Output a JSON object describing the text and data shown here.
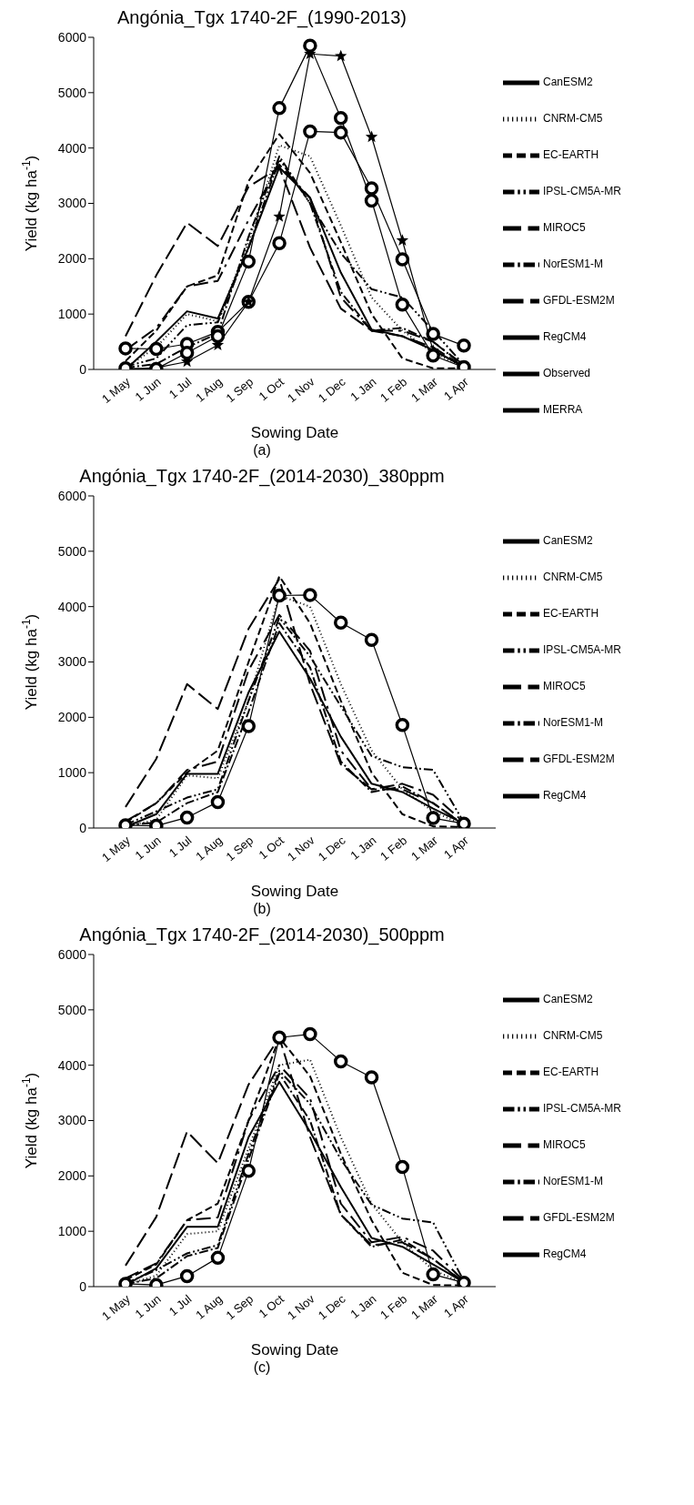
{
  "chart_data": [
    {
      "type": "line",
      "title": "Angónia_Tgx 1740-2F_(1990-2013)",
      "xlabel": "Sowing Date",
      "ylabel": "Yield (kg ha$^{-1}$)",
      "categories": [
        "1 May",
        "1 Jun",
        "1 Jul",
        "1 Aug",
        "1 Sep",
        "1 Oct",
        "1 Nov",
        "1 Dec",
        "1 Jan",
        "1 Feb",
        "1 Mar",
        "1 Apr"
      ],
      "ylim": [
        0,
        6000
      ],
      "yticks": [
        0,
        1000,
        2000,
        3000,
        4000,
        5000,
        6000
      ],
      "legend": "right",
      "annotations": [
        "(a)"
      ],
      "series": [
        {
          "name": "CanESM2",
          "color": "#000000",
          "line_style": "solid",
          "marker": "none",
          "values": [
            0,
            500,
            1050,
            920,
            2200,
            3650,
            3100,
            1750,
            720,
            600,
            350,
            50
          ]
        },
        {
          "name": "CNRM-CM5",
          "color": "#000000",
          "line_style": "dotted",
          "marker": "none",
          "values": [
            30,
            400,
            1000,
            870,
            2300,
            4050,
            3850,
            2600,
            1300,
            700,
            300,
            50
          ]
        },
        {
          "name": "EC-EARTH",
          "color": "#000000",
          "line_style": "dashed",
          "marker": "none",
          "values": [
            150,
            700,
            1500,
            1700,
            3400,
            4250,
            3550,
            2300,
            1000,
            200,
            20,
            20
          ]
        },
        {
          "name": "IPSL-CM5A-MR",
          "color": "#000000",
          "line_style": "dashed",
          "marker": "none",
          "values": [
            50,
            200,
            800,
            850,
            2200,
            3800,
            3000,
            2100,
            1450,
            1300,
            700,
            80
          ]
        },
        {
          "name": "MIROC5",
          "color": "#000000",
          "line_style": "dashed",
          "marker": "none",
          "values": [
            350,
            750,
            1500,
            1600,
            2700,
            3700,
            3100,
            1300,
            700,
            700,
            500,
            80
          ]
        },
        {
          "name": "NorESM1-M",
          "color": "#000000",
          "line_style": "dashed",
          "marker": "none",
          "values": [
            30,
            100,
            400,
            650,
            2400,
            3850,
            3000,
            1400,
            700,
            750,
            500,
            60
          ]
        },
        {
          "name": "GFDL-ESM2M",
          "color": "#000000",
          "line_style": "dashed",
          "marker": "none",
          "values": [
            600,
            1700,
            2650,
            2230,
            3300,
            3650,
            2200,
            1100,
            700,
            600,
            400,
            50
          ]
        },
        {
          "name": "RegCM4",
          "color": "#000000",
          "line_style": "solid",
          "marker": "circle",
          "values": [
            380,
            370,
            460,
            680,
            1220,
            2280,
            4300,
            4280,
            3270,
            1990,
            640,
            430
          ]
        },
        {
          "name": "Observed",
          "color": "#000000",
          "line_style": "solid",
          "marker": "star",
          "values": [
            0,
            30,
            140,
            440,
            1220,
            2760,
            5700,
            5660,
            4200,
            2330,
            340,
            40
          ]
        },
        {
          "name": "MERRA",
          "color": "#000000",
          "line_style": "solid",
          "marker": "circle",
          "values": [
            20,
            10,
            300,
            600,
            1950,
            4720,
            5850,
            4540,
            3050,
            1170,
            250,
            40
          ]
        }
      ]
    },
    {
      "type": "line",
      "title": "Angónia_Tgx 1740-2F_(2014-2030)_380ppm",
      "xlabel": "Sowing Date",
      "ylabel": "Yield (kg ha$^{-1}$)",
      "categories": [
        "1 May",
        "1 Jun",
        "1 Jul",
        "1 Aug",
        "1 Sep",
        "1 Oct",
        "1 Nov",
        "1 Dec",
        "1 Jan",
        "1 Feb",
        "1 Mar",
        "1 Apr"
      ],
      "ylim": [
        0,
        6000
      ],
      "yticks": [
        0,
        1000,
        2000,
        3000,
        4000,
        5000,
        6000
      ],
      "legend": "right",
      "annotations": [
        "(b)"
      ],
      "series": [
        {
          "name": "CanESM2",
          "color": "#000000",
          "line_style": "solid",
          "marker": "none",
          "values": [
            20,
            250,
            980,
            980,
            2450,
            3550,
            2700,
            1650,
            800,
            650,
            350,
            80
          ]
        },
        {
          "name": "CNRM-CM5",
          "color": "#000000",
          "line_style": "dotted",
          "marker": "none",
          "values": [
            30,
            150,
            950,
            900,
            2300,
            4200,
            4000,
            2600,
            1400,
            700,
            300,
            50
          ]
        },
        {
          "name": "EC-EARTH",
          "color": "#000000",
          "line_style": "dashed",
          "marker": "none",
          "values": [
            100,
            450,
            1000,
            1400,
            3000,
            4550,
            3700,
            2300,
            1000,
            250,
            30,
            20
          ]
        },
        {
          "name": "IPSL-CM5A-MR",
          "color": "#000000",
          "line_style": "dashed",
          "marker": "none",
          "values": [
            60,
            300,
            550,
            700,
            2300,
            3800,
            3100,
            2200,
            1300,
            1100,
            1050,
            100
          ]
        },
        {
          "name": "MIROC5",
          "color": "#000000",
          "line_style": "dashed",
          "marker": "none",
          "values": [
            120,
            450,
            1050,
            1200,
            2850,
            3850,
            3200,
            1400,
            700,
            800,
            600,
            100
          ]
        },
        {
          "name": "NorESM1-M",
          "color": "#000000",
          "line_style": "dashed",
          "marker": "none",
          "values": [
            50,
            100,
            450,
            650,
            2100,
            3700,
            2900,
            1200,
            650,
            750,
            450,
            60
          ]
        },
        {
          "name": "GFDL-ESM2M",
          "color": "#000000",
          "line_style": "dashed",
          "marker": "none",
          "values": [
            380,
            1250,
            2600,
            2150,
            3600,
            4500,
            2600,
            1150,
            700,
            700,
            450,
            60
          ]
        },
        {
          "name": "RegCM4",
          "color": "#000000",
          "line_style": "solid",
          "marker": "circle",
          "values": [
            50,
            40,
            190,
            470,
            1840,
            4200,
            4210,
            3710,
            3400,
            1860,
            180,
            80
          ]
        }
      ]
    },
    {
      "type": "line",
      "title": "Angónia_Tgx 1740-2F_(2014-2030)_500ppm",
      "xlabel": "Sowing Date",
      "ylabel": "Yield (kg ha$^{-1}$)",
      "categories": [
        "1 May",
        "1 Jun",
        "1 Jul",
        "1 Aug",
        "1 Sep",
        "1 Oct",
        "1 Nov",
        "1 Dec",
        "1 Jan",
        "1 Feb",
        "1 Mar",
        "1 Apr"
      ],
      "ylim": [
        0,
        6000
      ],
      "yticks": [
        0,
        1000,
        2000,
        3000,
        4000,
        5000,
        6000
      ],
      "legend": "right",
      "annotations": [
        "(c)"
      ],
      "series": [
        {
          "name": "CanESM2",
          "color": "#000000",
          "line_style": "solid",
          "marker": "none",
          "values": [
            30,
            330,
            1080,
            1080,
            2700,
            3700,
            2800,
            1800,
            880,
            720,
            400,
            80
          ]
        },
        {
          "name": "CNRM-CM5",
          "color": "#000000",
          "line_style": "dotted",
          "marker": "none",
          "values": [
            30,
            200,
            950,
            1000,
            2500,
            4000,
            4100,
            2700,
            1500,
            800,
            300,
            60
          ]
        },
        {
          "name": "EC-EARTH",
          "color": "#000000",
          "line_style": "dashed",
          "marker": "none",
          "values": [
            120,
            400,
            1200,
            1500,
            3000,
            4500,
            3800,
            2400,
            1200,
            250,
            30,
            20
          ]
        },
        {
          "name": "IPSL-CM5A-MR",
          "color": "#000000",
          "line_style": "dashed",
          "marker": "none",
          "values": [
            60,
            300,
            600,
            750,
            2400,
            3900,
            3300,
            2300,
            1480,
            1230,
            1160,
            100
          ]
        },
        {
          "name": "MIROC5",
          "color": "#000000",
          "line_style": "dashed",
          "marker": "none",
          "values": [
            150,
            420,
            1200,
            1250,
            3000,
            4000,
            3400,
            1500,
            800,
            900,
            650,
            100
          ]
        },
        {
          "name": "NorESM1-M",
          "color": "#000000",
          "line_style": "dashed",
          "marker": "none",
          "values": [
            50,
            150,
            550,
            700,
            2300,
            3850,
            3000,
            1300,
            720,
            850,
            500,
            70
          ]
        },
        {
          "name": "GFDL-ESM2M",
          "color": "#000000",
          "line_style": "dashed",
          "marker": "none",
          "values": [
            380,
            1260,
            2800,
            2230,
            3650,
            4500,
            2700,
            1300,
            750,
            800,
            500,
            80
          ]
        },
        {
          "name": "RegCM4",
          "color": "#000000",
          "line_style": "solid",
          "marker": "circle",
          "values": [
            50,
            30,
            190,
            520,
            2090,
            4500,
            4560,
            4070,
            3780,
            2160,
            220,
            70
          ]
        }
      ]
    }
  ]
}
